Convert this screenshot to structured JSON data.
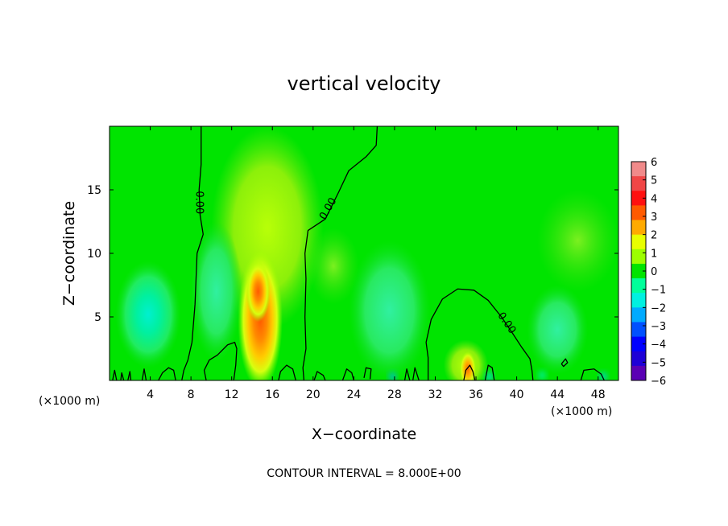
{
  "chart_data": {
    "type": "heatmap",
    "title": "vertical velocity",
    "xlabel": "X−coordinate",
    "ylabel": "Z−coordinate",
    "x_unit": "(×1000 m)",
    "x_unit_right": "(×1000 m)",
    "xlim": [
      0,
      50
    ],
    "ylim": [
      0,
      20
    ],
    "x_ticks": [
      4,
      8,
      12,
      16,
      20,
      24,
      28,
      32,
      36,
      40,
      44,
      48
    ],
    "y_ticks": [
      5,
      10,
      15
    ],
    "colorbar": {
      "ticks": [
        6,
        5,
        4,
        3,
        2,
        1,
        0,
        -1,
        -2,
        -3,
        -4,
        -5,
        -6
      ],
      "tick_labels": [
        "6",
        "5",
        "4",
        "3",
        "2",
        "1",
        "0",
        "−1",
        "−2",
        "−3",
        "−4",
        "−5",
        "−6"
      ],
      "colors": [
        "#f08a8a",
        "#f04646",
        "#ff1010",
        "#ff5a00",
        "#ffaa00",
        "#e8ff00",
        "#9cff00",
        "#00e400",
        "#00ff9a",
        "#00f0e0",
        "#00aaff",
        "#0050ff",
        "#0000ff",
        "#1e00d6",
        "#5a00b4"
      ]
    },
    "field_features": [
      {
        "type": "updraft",
        "x": 14.8,
        "z": 4.5,
        "max": 3.5
      },
      {
        "type": "updraft",
        "x": 35.2,
        "z": 1.0,
        "max": 3.0
      },
      {
        "type": "downdraft",
        "x": 4.0,
        "z": 5.0,
        "min": -1.6
      },
      {
        "type": "downdraft",
        "x": 28.0,
        "z": 5.5,
        "min": -1.2
      }
    ],
    "contour_label": "0.00",
    "contour_labels": [
      {
        "text": "0.00",
        "x": 8.8,
        "z": 14.0,
        "angle": 90
      },
      {
        "text": "0.00",
        "x": 21.5,
        "z": 13.5,
        "angle": -60
      },
      {
        "text": "0.00",
        "x": 39.0,
        "z": 4.5,
        "angle": 55
      }
    ],
    "contour_interval_text": "CONTOUR INTERVAL = 8.000E+00"
  }
}
